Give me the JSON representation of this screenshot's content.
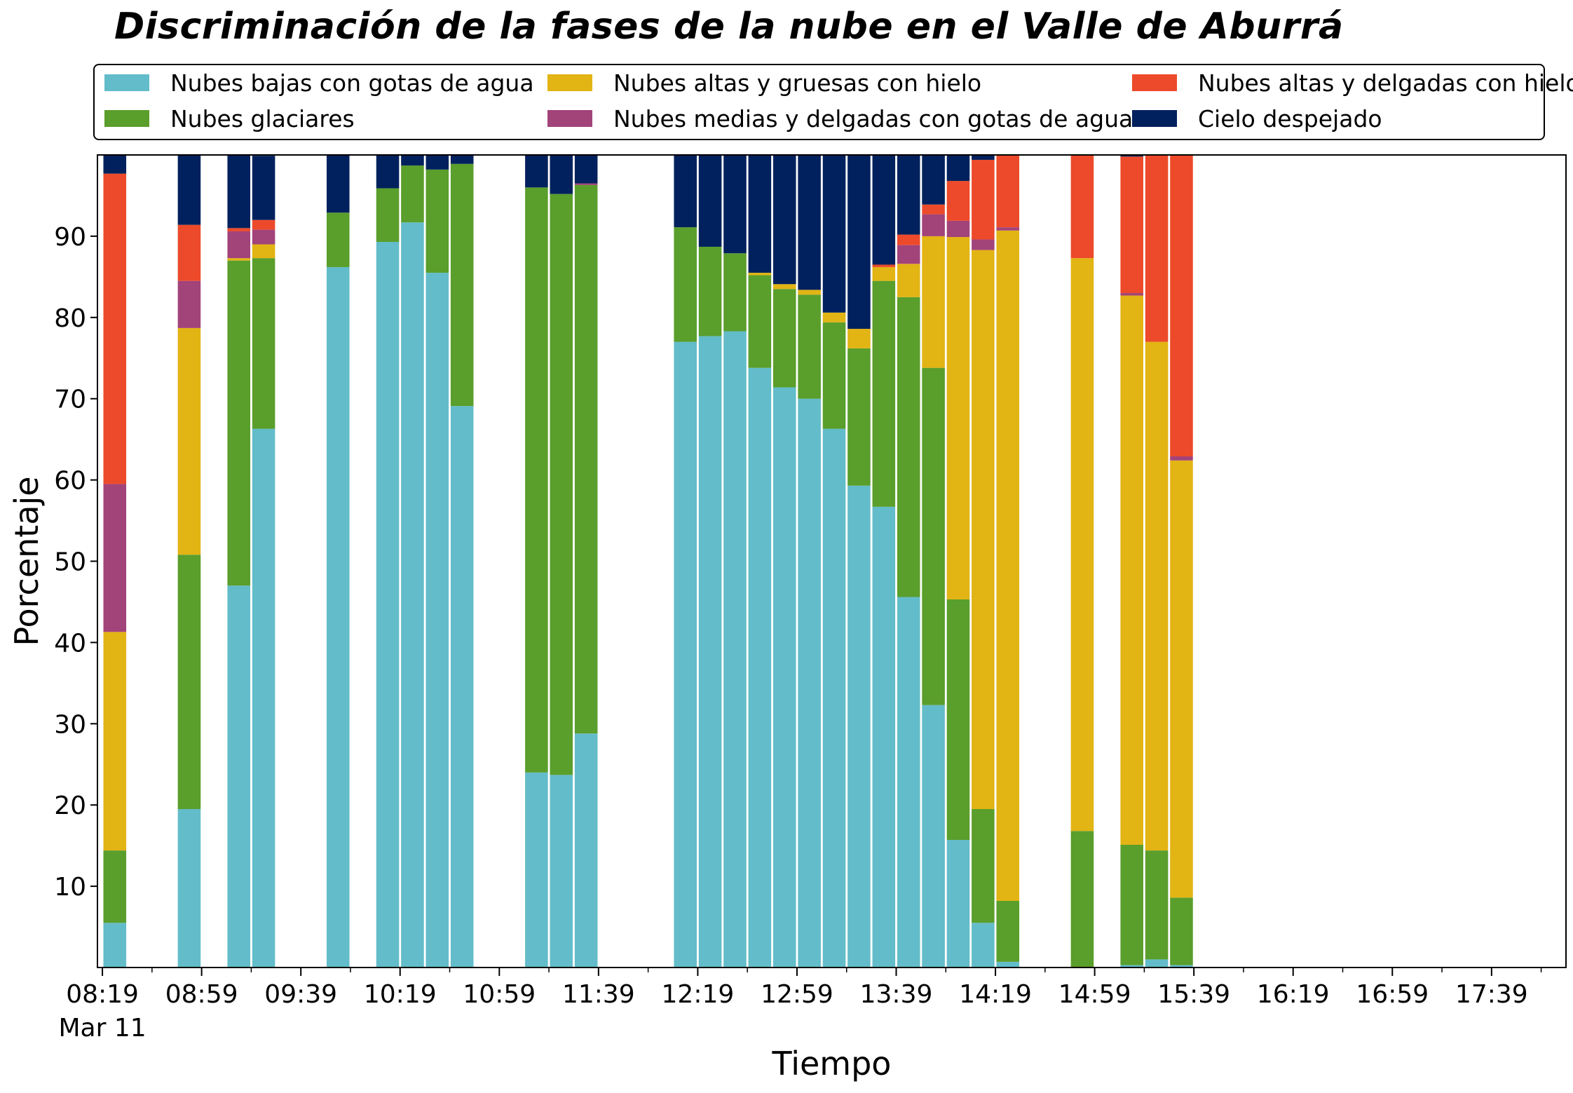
{
  "chart_data": {
    "type": "bar",
    "stacked": true,
    "title": "Discriminación de la fases de la nube en el Valle de Aburrá",
    "xlabel": "Tiempo",
    "ylabel": "Porcentaje",
    "ylim": [
      0,
      100
    ],
    "yticks": [
      10,
      20,
      30,
      40,
      50,
      60,
      70,
      80,
      90
    ],
    "xrange_minutes": [
      -2,
      590
    ],
    "xtick_minutes": [
      0,
      40,
      80,
      120,
      160,
      200,
      240,
      280,
      320,
      360,
      400,
      440,
      480,
      520,
      560
    ],
    "xtick_labels": [
      "08:19",
      "08:59",
      "09:39",
      "10:19",
      "10:59",
      "11:39",
      "12:19",
      "12:59",
      "13:39",
      "14:19",
      "14:59",
      "15:39",
      "16:19",
      "16:59",
      "17:39"
    ],
    "xtick_date_label": "Mar 11",
    "minor_tick_minutes": [
      20,
      60,
      100,
      140,
      180,
      220,
      260,
      300,
      340,
      380,
      420,
      460,
      500,
      540,
      580
    ],
    "bar_width_minutes": 9.2,
    "legend_position": "top, above plot, 3 columns",
    "grid": false,
    "x": [
      "08:24",
      "08:54",
      "09:14",
      "09:24",
      "09:54",
      "10:14",
      "10:24",
      "10:34",
      "10:44",
      "11:14",
      "11:24",
      "11:34",
      "12:14",
      "12:24",
      "12:34",
      "12:44",
      "12:54",
      "13:04",
      "13:14",
      "13:24",
      "13:34",
      "13:44",
      "13:54",
      "14:04",
      "14:14",
      "14:24",
      "14:54",
      "15:14",
      "15:24",
      "15:34"
    ],
    "series": [
      {
        "name": "Nubes bajas con gotas de agua",
        "color": "#63BCC9",
        "values": [
          5.5,
          19.5,
          47.0,
          66.3,
          86.2,
          89.3,
          91.7,
          85.5,
          69.1,
          24.0,
          23.7,
          28.8,
          77.0,
          77.7,
          78.3,
          73.8,
          71.4,
          70.0,
          66.3,
          59.3,
          56.7,
          45.6,
          32.3,
          15.7,
          5.5,
          0.7,
          0.0,
          0.3,
          1.0,
          0.3
        ]
      },
      {
        "name": "Nubes glaciares",
        "color": "#5A9E2B",
        "values": [
          8.9,
          31.3,
          40.0,
          21.0,
          6.7,
          6.6,
          7.0,
          12.7,
          29.8,
          72.0,
          71.5,
          67.5,
          14.1,
          11.0,
          9.6,
          11.4,
          12.1,
          12.8,
          13.1,
          16.9,
          27.8,
          36.9,
          41.5,
          29.6,
          14.0,
          7.5,
          16.8,
          14.8,
          13.4,
          8.3
        ]
      },
      {
        "name": "Nubes altas y gruesas con hielo",
        "color": "#E2B414",
        "values": [
          26.9,
          27.9,
          0.3,
          1.7,
          0.0,
          0.0,
          0.0,
          0.0,
          0.0,
          0.0,
          0.0,
          0.0,
          0.0,
          0.0,
          0.0,
          0.3,
          0.6,
          0.6,
          1.2,
          2.4,
          1.7,
          4.1,
          16.2,
          44.6,
          68.8,
          82.5,
          70.5,
          67.6,
          62.6,
          53.8
        ]
      },
      {
        "name": "Nubes medias y delgadas con gotas de agua",
        "color": "#A2437A",
        "values": [
          18.2,
          5.8,
          3.3,
          1.8,
          0.0,
          0.0,
          0.0,
          0.0,
          0.0,
          0.0,
          0.0,
          0.2,
          0.0,
          0.0,
          0.0,
          0.0,
          0.0,
          0.0,
          0.0,
          0.0,
          0.0,
          2.3,
          2.7,
          2.0,
          1.3,
          0.4,
          0.0,
          0.3,
          0.0,
          0.5
        ]
      },
      {
        "name": "Nubes altas y delgadas con hielo",
        "color": "#EC4A2A",
        "values": [
          38.2,
          6.9,
          0.4,
          1.2,
          0.0,
          0.0,
          0.0,
          0.0,
          0.0,
          0.0,
          0.0,
          0.0,
          0.0,
          0.0,
          0.0,
          0.0,
          0.0,
          0.0,
          0.0,
          0.0,
          0.3,
          1.3,
          1.2,
          4.9,
          9.8,
          8.9,
          12.7,
          16.8,
          23.0,
          37.1
        ]
      },
      {
        "name": "Cielo despejado",
        "color": "#00215D",
        "values": [
          2.3,
          8.6,
          9.0,
          7.9,
          7.1,
          4.1,
          1.3,
          1.8,
          1.1,
          4.0,
          4.8,
          3.5,
          8.9,
          11.3,
          12.1,
          14.5,
          15.9,
          16.6,
          19.4,
          21.4,
          13.5,
          9.8,
          6.1,
          3.2,
          0.6,
          0.0,
          0.0,
          0.2,
          0.0,
          0.0
        ]
      }
    ]
  }
}
